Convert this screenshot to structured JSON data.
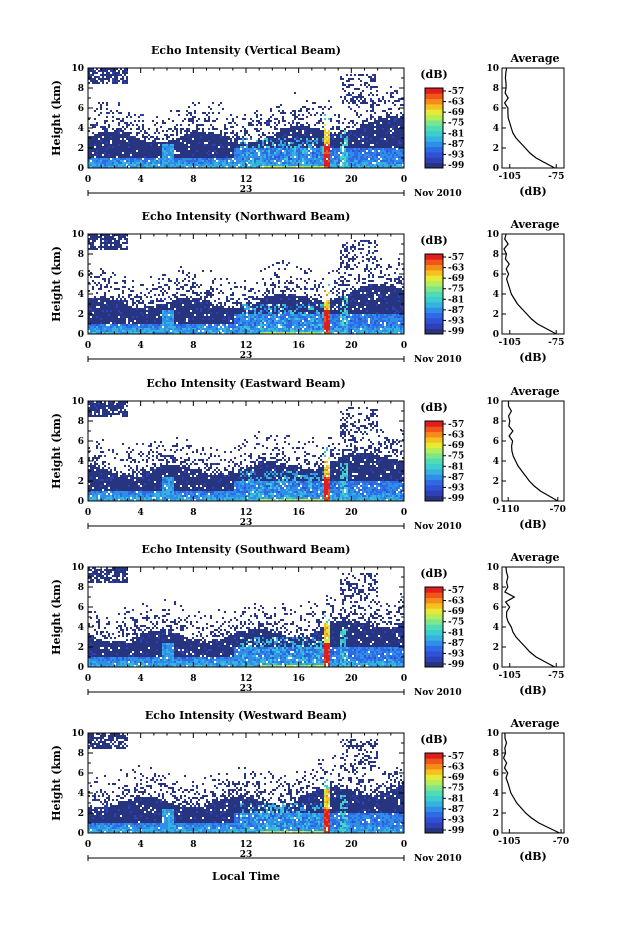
{
  "figure": {
    "xlabel": "Local Time",
    "date_label": "Nov 2010",
    "day_label": "23",
    "colorbar": {
      "unit": "(dB)",
      "ticks": [
        "-57",
        "-63",
        "-69",
        "-75",
        "-81",
        "-87",
        "-93",
        "-99"
      ],
      "colors": [
        "#27347f",
        "#2f3fb6",
        "#3050d6",
        "#2e6ae6",
        "#2f8fe8",
        "#35b2e0",
        "#3ecdcf",
        "#4fdcb4",
        "#7ee58c",
        "#b4ec5a",
        "#e6ea36",
        "#f7c021",
        "#f58c1a",
        "#f0561a",
        "#e01e1e"
      ]
    },
    "average_title": "Average",
    "average_xlabel": "(dB)"
  },
  "chart_data": [
    {
      "type": "heatmap",
      "title": "Echo Intensity (Vertical Beam)",
      "ylabel": "Height (km)",
      "xlabel": "Local Time",
      "x_ticks": [
        "0",
        "4",
        "8",
        "12",
        "16",
        "20",
        "0"
      ],
      "xlim": [
        0,
        24
      ],
      "y_ticks": [
        "0",
        "2",
        "4",
        "6",
        "8",
        "10"
      ],
      "ylim": [
        0,
        10
      ],
      "color_range_db": [
        -99,
        -57
      ],
      "average": {
        "x_ticks": [
          "-105",
          "-75"
        ],
        "xlim": [
          -110,
          -70
        ],
        "height_km": [
          0,
          0.5,
          1,
          1.5,
          2,
          2.5,
          3,
          3.5,
          4,
          4.5,
          5,
          5.5,
          6,
          6.5,
          7,
          7.5,
          8,
          8.5,
          9,
          9.5,
          10
        ],
        "value_db": [
          -76,
          -82,
          -88,
          -92,
          -95,
          -98,
          -101,
          -103,
          -104,
          -105,
          -106,
          -107,
          -106,
          -108,
          -106,
          -108,
          -107,
          -108,
          -107,
          -108,
          -108
        ]
      }
    },
    {
      "type": "heatmap",
      "title": "Echo Intensity (Northward Beam)",
      "ylabel": "Height (km)",
      "xlabel": "Local Time",
      "x_ticks": [
        "0",
        "4",
        "8",
        "12",
        "16",
        "20",
        "0"
      ],
      "xlim": [
        0,
        24
      ],
      "y_ticks": [
        "0",
        "2",
        "4",
        "6",
        "8",
        "10"
      ],
      "ylim": [
        0,
        10
      ],
      "color_range_db": [
        -99,
        -57
      ],
      "average": {
        "x_ticks": [
          "-105",
          "-75"
        ],
        "xlim": [
          -110,
          -70
        ],
        "height_km": [
          0,
          0.5,
          1,
          1.5,
          2,
          2.5,
          3,
          3.5,
          4,
          4.5,
          5,
          5.5,
          6,
          6.5,
          7,
          7.5,
          8,
          8.5,
          9,
          9.5,
          10
        ],
        "value_db": [
          -75,
          -81,
          -87,
          -91,
          -94,
          -97,
          -100,
          -102,
          -104,
          -105,
          -106,
          -107,
          -106,
          -107,
          -106,
          -108,
          -107,
          -108,
          -107,
          -108,
          -108
        ]
      }
    },
    {
      "type": "heatmap",
      "title": "Echo Intensity (Eastward Beam)",
      "ylabel": "Height (km)",
      "xlabel": "Local Time",
      "x_ticks": [
        "0",
        "4",
        "8",
        "12",
        "16",
        "20",
        "0"
      ],
      "xlim": [
        0,
        24
      ],
      "y_ticks": [
        "0",
        "2",
        "4",
        "6",
        "8",
        "10"
      ],
      "ylim": [
        0,
        10
      ],
      "color_range_db": [
        -99,
        -57
      ],
      "average": {
        "x_ticks": [
          "-110",
          "-70"
        ],
        "xlim": [
          -115,
          -65
        ],
        "height_km": [
          0,
          0.5,
          1,
          1.5,
          2,
          2.5,
          3,
          3.5,
          4,
          4.5,
          5,
          5.5,
          6,
          6.5,
          7,
          7.5,
          8,
          8.5,
          9,
          9.5,
          10
        ],
        "value_db": [
          -70,
          -77,
          -84,
          -89,
          -93,
          -96,
          -99,
          -102,
          -104,
          -106,
          -107,
          -108,
          -107,
          -109,
          -107,
          -109,
          -108,
          -110,
          -108,
          -110,
          -110
        ]
      }
    },
    {
      "type": "heatmap",
      "title": "Echo Intensity (Southward Beam)",
      "ylabel": "Height (km)",
      "xlabel": "Local Time",
      "x_ticks": [
        "0",
        "4",
        "8",
        "12",
        "16",
        "20",
        "0"
      ],
      "xlim": [
        0,
        24
      ],
      "y_ticks": [
        "0",
        "2",
        "4",
        "6",
        "8",
        "10"
      ],
      "ylim": [
        0,
        10
      ],
      "color_range_db": [
        -99,
        -57
      ],
      "average": {
        "x_ticks": [
          "-105",
          "-75"
        ],
        "xlim": [
          -110,
          -70
        ],
        "height_km": [
          0,
          0.5,
          1,
          1.5,
          2,
          2.5,
          3,
          3.5,
          4,
          4.5,
          5,
          5.5,
          6,
          6.5,
          7,
          7.5,
          8,
          8.5,
          9,
          9.5,
          10
        ],
        "value_db": [
          -76,
          -82,
          -88,
          -92,
          -95,
          -98,
          -101,
          -103,
          -104,
          -106,
          -107,
          -107,
          -106,
          -108,
          -103,
          -108,
          -106,
          -108,
          -107,
          -108,
          -108
        ]
      }
    },
    {
      "type": "heatmap",
      "title": "Echo Intensity (Westward Beam)",
      "ylabel": "Height (km)",
      "xlabel": "Local Time",
      "x_ticks": [
        "0",
        "4",
        "8",
        "12",
        "16",
        "20",
        "0"
      ],
      "xlim": [
        0,
        24
      ],
      "y_ticks": [
        "0",
        "2",
        "4",
        "6",
        "8",
        "10"
      ],
      "ylim": [
        0,
        10
      ],
      "color_range_db": [
        -99,
        -57
      ],
      "average": {
        "x_ticks": [
          "-105",
          "-70"
        ],
        "xlim": [
          -110,
          -68
        ],
        "height_km": [
          0,
          0.5,
          1,
          1.5,
          2,
          2.5,
          3,
          3.5,
          4,
          4.5,
          5,
          5.5,
          6,
          6.5,
          7,
          7.5,
          8,
          8.5,
          9,
          9.5,
          10
        ],
        "value_db": [
          -71,
          -78,
          -85,
          -90,
          -94,
          -97,
          -100,
          -102,
          -104,
          -105,
          -106,
          -107,
          -106,
          -108,
          -106,
          -108,
          -107,
          -108,
          -107,
          -108,
          -108
        ]
      }
    }
  ]
}
